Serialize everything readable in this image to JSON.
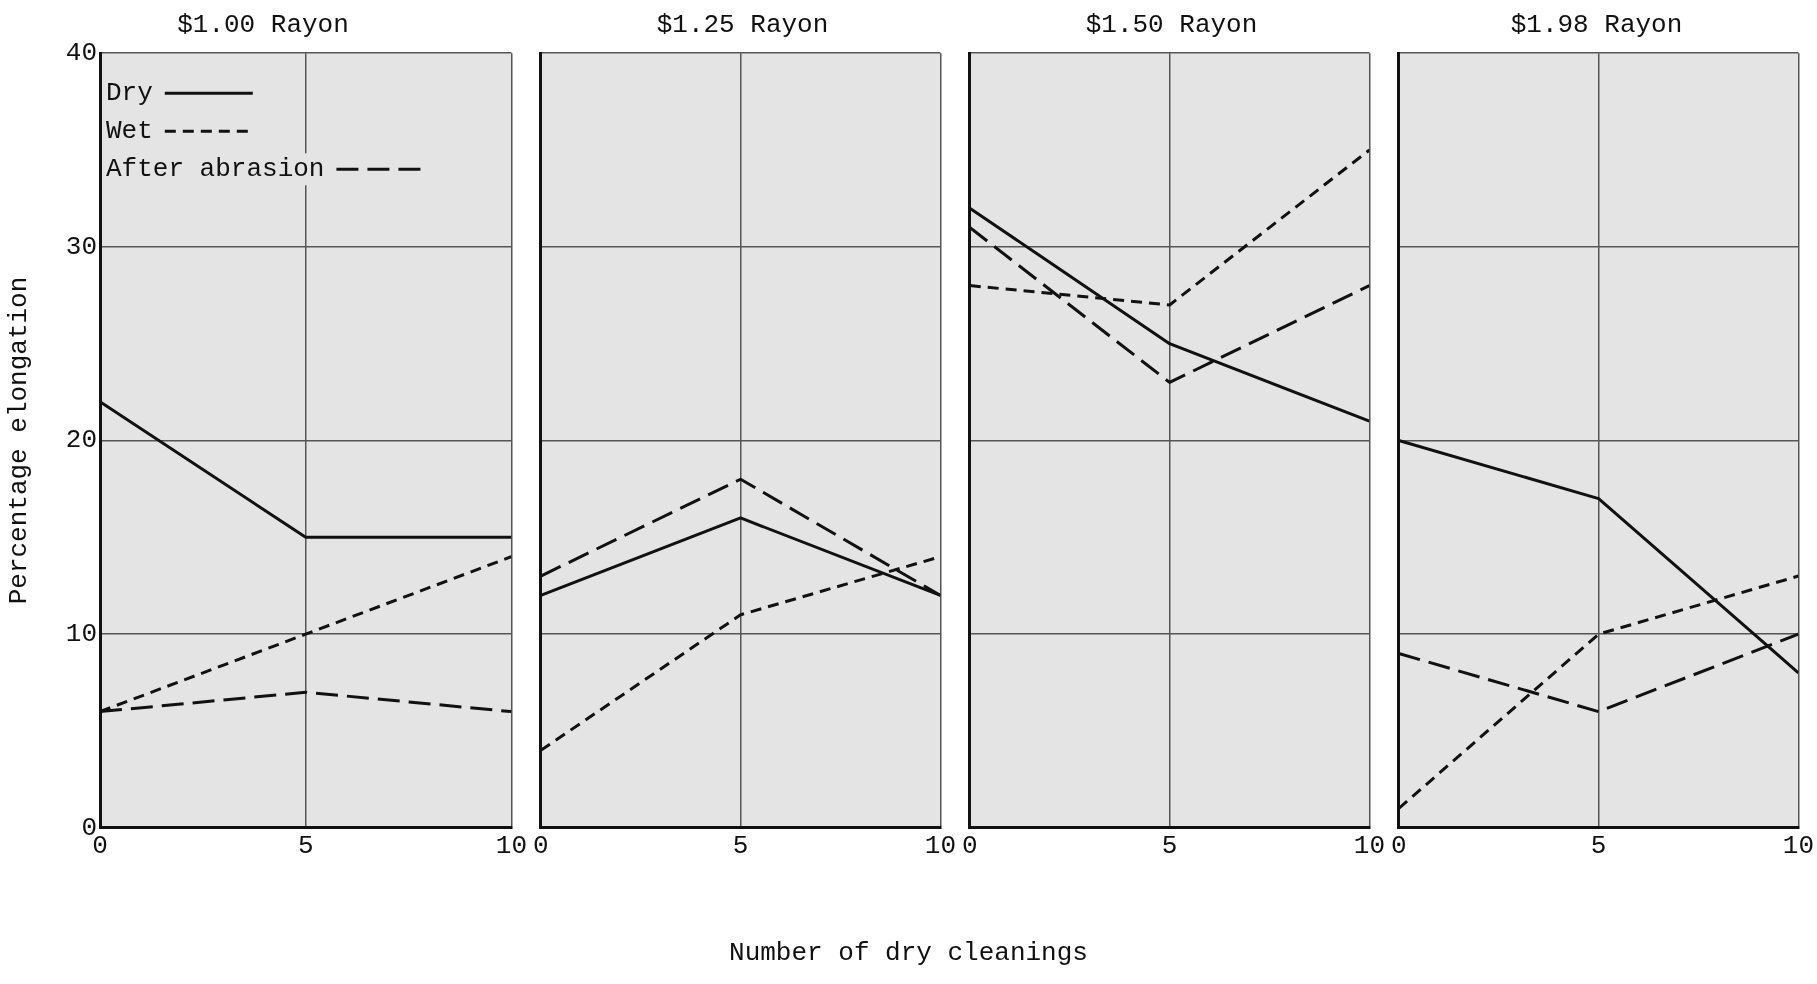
{
  "chart_data": [
    {
      "type": "line",
      "title": "$1.00 Rayon",
      "ylabel": "Percentage elongation",
      "x": [
        0,
        5,
        10
      ],
      "xlim": [
        0,
        10
      ],
      "xticks": [
        0,
        5,
        10
      ],
      "ylim": [
        0,
        40
      ],
      "yticks": [
        0,
        10,
        20,
        30,
        40
      ],
      "grid": true,
      "legend": "top left",
      "marker": "none",
      "series": [
        {
          "name": "Dry",
          "color": "#111111",
          "line_style": "solid",
          "values": [
            22,
            15,
            15
          ]
        },
        {
          "name": "Wet",
          "color": "#111111",
          "line_style": "dashed",
          "values": [
            6,
            10,
            14
          ]
        },
        {
          "name": "After abrasion",
          "color": "#111111",
          "line_style": "dashed",
          "values": [
            6,
            7,
            6
          ]
        }
      ]
    },
    {
      "type": "line",
      "title": "$1.25 Rayon",
      "xlabel": "Number of dry cleanings",
      "x": [
        0,
        5,
        10
      ],
      "xlim": [
        0,
        10
      ],
      "xticks": [
        0,
        5,
        10
      ],
      "ylim": [
        0,
        40
      ],
      "yticks": [
        0,
        10,
        20,
        30,
        40
      ],
      "grid": true,
      "tick_labels": "x",
      "marker": "none",
      "series": [
        {
          "color": "#111111",
          "line_style": "solid",
          "values": [
            12,
            16,
            12
          ]
        },
        {
          "color": "#111111",
          "line_style": "dashed",
          "values": [
            4,
            11,
            14
          ]
        },
        {
          "color": "#111111",
          "line_style": "dashed",
          "values": [
            13,
            18,
            12
          ]
        }
      ]
    },
    {
      "type": "line",
      "title": "$1.50 Rayon",
      "x": [
        0,
        5,
        10
      ],
      "xlim": [
        0,
        10
      ],
      "xticks": [
        0,
        5,
        10
      ],
      "ylim": [
        0,
        40
      ],
      "yticks": [
        0,
        10,
        20,
        30,
        40
      ],
      "grid": true,
      "tick_labels": "x",
      "marker": "none",
      "series": [
        {
          "color": "#111111",
          "line_style": "solid",
          "values": [
            32,
            25,
            21
          ]
        },
        {
          "color": "#111111",
          "line_style": "dashed",
          "values": [
            28,
            27,
            35
          ]
        },
        {
          "color": "#111111",
          "line_style": "dashed",
          "values": [
            31,
            23,
            28
          ]
        }
      ]
    },
    {
      "type": "line",
      "title": "$1.98 Rayon",
      "x": [
        0,
        5,
        10
      ],
      "xlim": [
        0,
        10
      ],
      "xticks": [
        0,
        5,
        10
      ],
      "ylim": [
        0,
        40
      ],
      "yticks": [
        0,
        10,
        20,
        30,
        40
      ],
      "grid": true,
      "tick_labels": "x",
      "marker": "none",
      "series": [
        {
          "color": "#111111",
          "line_style": "solid",
          "values": [
            20,
            17,
            8
          ]
        },
        {
          "color": "#111111",
          "line_style": "dashed",
          "values": [
            1,
            10,
            13
          ]
        },
        {
          "color": "#111111",
          "line_style": "dashed",
          "values": [
            9,
            6,
            10
          ]
        }
      ]
    }
  ]
}
